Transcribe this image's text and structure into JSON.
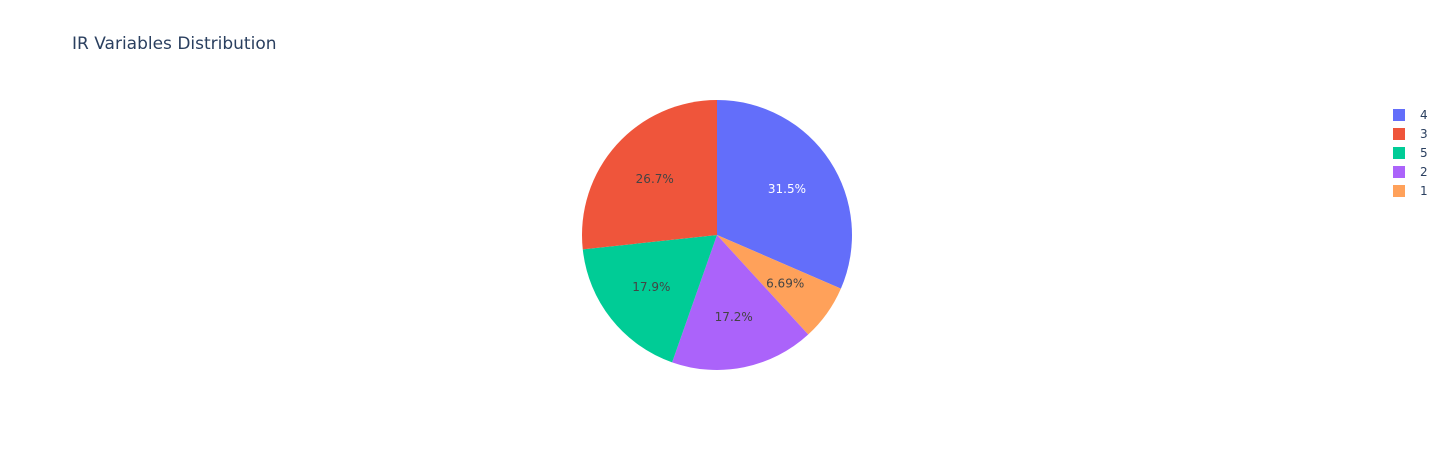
{
  "chart_data": {
    "type": "pie",
    "title": "IR Variables Distribution",
    "slices": [
      {
        "label": "4",
        "percent": 31.5,
        "percent_text": "31.5%",
        "color": "#636efa",
        "text_color": "#ffffff"
      },
      {
        "label": "1",
        "percent": 6.69,
        "percent_text": "6.69%",
        "color": "#ffa15a",
        "text_color": "#444444"
      },
      {
        "label": "2",
        "percent": 17.2,
        "percent_text": "17.2%",
        "color": "#ab63fa",
        "text_color": "#444444"
      },
      {
        "label": "5",
        "percent": 17.9,
        "percent_text": "17.9%",
        "color": "#00cc96",
        "text_color": "#444444"
      },
      {
        "label": "3",
        "percent": 26.7,
        "percent_text": "26.7%",
        "color": "#ef553b",
        "text_color": "#444444"
      }
    ],
    "legend": {
      "placement": "top-right",
      "order": [
        "4",
        "3",
        "5",
        "2",
        "1"
      ]
    }
  }
}
